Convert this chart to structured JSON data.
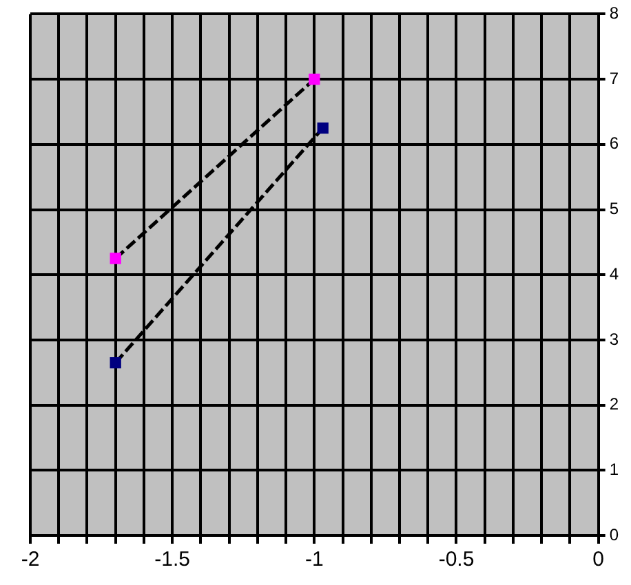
{
  "chart_data": {
    "type": "line",
    "series": [
      {
        "color": "#ff00ff",
        "x": [
          -1.7,
          -1.0
        ],
        "values": [
          4.25,
          7.0
        ]
      },
      {
        "color": "#000080",
        "x": [
          -1.7,
          -0.97
        ],
        "values": [
          2.65,
          6.25
        ]
      }
    ],
    "xlim": [
      -2,
      0
    ],
    "ylim": [
      0,
      8
    ],
    "xticks": [
      -2,
      {
        "value": -1.9,
        "label": null
      },
      {
        "value": -1.8,
        "label": null
      },
      {
        "value": -1.7,
        "label": null
      },
      {
        "value": -1.6,
        "label": null
      },
      -1.5,
      {
        "value": -1.4,
        "label": null
      },
      {
        "value": -1.3,
        "label": null
      },
      {
        "value": -1.2,
        "label": null
      },
      {
        "value": -1.1,
        "label": null
      },
      -1,
      {
        "value": -0.9,
        "label": null
      },
      {
        "value": -0.8,
        "label": null
      },
      {
        "value": -0.7,
        "label": null
      },
      {
        "value": -0.6,
        "label": null
      },
      -0.5,
      {
        "value": -0.4,
        "label": null
      },
      {
        "value": -0.3,
        "label": null
      },
      {
        "value": -0.2,
        "label": null
      },
      {
        "value": -0.1,
        "label": null
      },
      0
    ],
    "yticks": [
      0,
      1,
      2,
      3,
      4,
      5,
      6,
      7,
      8
    ],
    "grid": true,
    "legend": false,
    "marker": "square",
    "line_style": "dashed"
  }
}
